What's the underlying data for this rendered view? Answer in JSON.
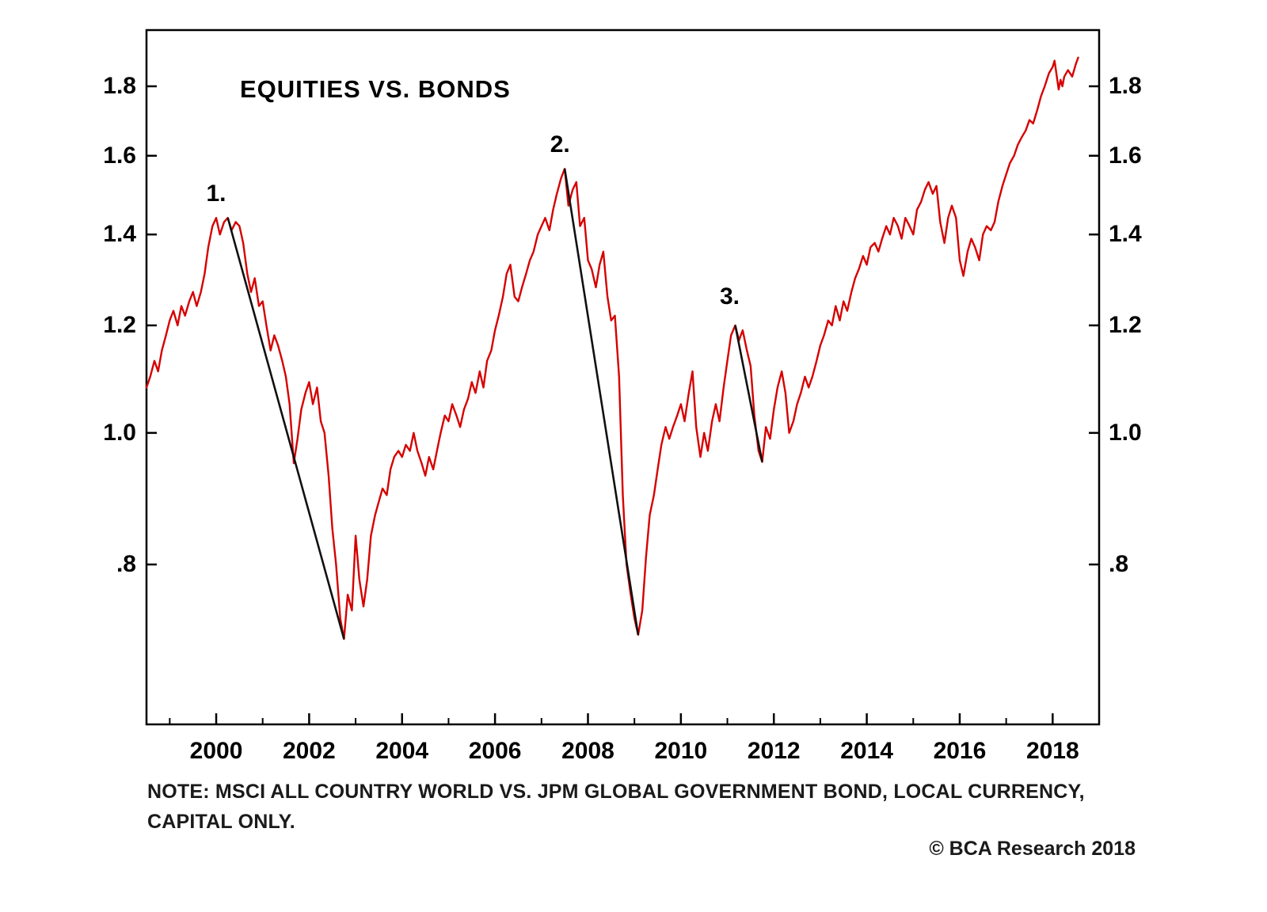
{
  "colors": {
    "line": "#d60000",
    "trend": "#111111",
    "axis": "#000000",
    "background": "#ffffff"
  },
  "chart_data": {
    "type": "line",
    "title": "EQUITIES VS. BONDS",
    "note_line1": "NOTE: MSCI ALL COUNTRY WORLD VS. JPM GLOBAL GOVERNMENT BOND, LOCAL CURRENCY,",
    "note_line2": "CAPITAL ONLY.",
    "copyright": "© BCA Research 2018",
    "x_range": [
      1998.5,
      2019.0
    ],
    "y_range": [
      0.61,
      1.98
    ],
    "y_scale": "log",
    "grid": false,
    "x_ticks": [
      {
        "value": 2000,
        "label": "2000"
      },
      {
        "value": 2002,
        "label": "2002"
      },
      {
        "value": 2004,
        "label": "2004"
      },
      {
        "value": 2006,
        "label": "2006"
      },
      {
        "value": 2008,
        "label": "2008"
      },
      {
        "value": 2010,
        "label": "2010"
      },
      {
        "value": 2012,
        "label": "2012"
      },
      {
        "value": 2014,
        "label": "2014"
      },
      {
        "value": 2016,
        "label": "2016"
      },
      {
        "value": 2018,
        "label": "2018"
      }
    ],
    "x_minor_ticks": [
      1999,
      2001,
      2003,
      2005,
      2007,
      2009,
      2011,
      2013,
      2015,
      2017
    ],
    "y_ticks": [
      {
        "value": 0.8,
        "label": ".8"
      },
      {
        "value": 1.0,
        "label": "1.0"
      },
      {
        "value": 1.2,
        "label": "1.2"
      },
      {
        "value": 1.4,
        "label": "1.4"
      },
      {
        "value": 1.6,
        "label": "1.6"
      },
      {
        "value": 1.8,
        "label": "1.8"
      }
    ],
    "series": [
      {
        "name": "EQUITIES VS. BONDS",
        "color": "#d60000",
        "points": [
          [
            1998.5,
            1.08
          ],
          [
            1998.58,
            1.1
          ],
          [
            1998.67,
            1.13
          ],
          [
            1998.75,
            1.11
          ],
          [
            1998.83,
            1.15
          ],
          [
            1998.92,
            1.18
          ],
          [
            1999.0,
            1.21
          ],
          [
            1999.08,
            1.23
          ],
          [
            1999.17,
            1.2
          ],
          [
            1999.25,
            1.24
          ],
          [
            1999.33,
            1.22
          ],
          [
            1999.42,
            1.25
          ],
          [
            1999.5,
            1.27
          ],
          [
            1999.58,
            1.24
          ],
          [
            1999.67,
            1.27
          ],
          [
            1999.75,
            1.31
          ],
          [
            1999.83,
            1.37
          ],
          [
            1999.92,
            1.42
          ],
          [
            2000.0,
            1.44
          ],
          [
            2000.08,
            1.4
          ],
          [
            2000.17,
            1.43
          ],
          [
            2000.25,
            1.44
          ],
          [
            2000.33,
            1.41
          ],
          [
            2000.42,
            1.43
          ],
          [
            2000.5,
            1.42
          ],
          [
            2000.58,
            1.38
          ],
          [
            2000.67,
            1.31
          ],
          [
            2000.75,
            1.27
          ],
          [
            2000.83,
            1.3
          ],
          [
            2000.92,
            1.24
          ],
          [
            2001.0,
            1.25
          ],
          [
            2001.08,
            1.2
          ],
          [
            2001.17,
            1.15
          ],
          [
            2001.25,
            1.18
          ],
          [
            2001.33,
            1.16
          ],
          [
            2001.42,
            1.13
          ],
          [
            2001.5,
            1.1
          ],
          [
            2001.58,
            1.05
          ],
          [
            2001.67,
            0.95
          ],
          [
            2001.75,
            0.99
          ],
          [
            2001.83,
            1.04
          ],
          [
            2001.92,
            1.07
          ],
          [
            2002.0,
            1.09
          ],
          [
            2002.08,
            1.05
          ],
          [
            2002.17,
            1.08
          ],
          [
            2002.25,
            1.02
          ],
          [
            2002.33,
            1.0
          ],
          [
            2002.42,
            0.93
          ],
          [
            2002.5,
            0.85
          ],
          [
            2002.58,
            0.8
          ],
          [
            2002.67,
            0.73
          ],
          [
            2002.75,
            0.705
          ],
          [
            2002.83,
            0.76
          ],
          [
            2002.92,
            0.74
          ],
          [
            2003.0,
            0.84
          ],
          [
            2003.08,
            0.78
          ],
          [
            2003.17,
            0.745
          ],
          [
            2003.25,
            0.78
          ],
          [
            2003.33,
            0.84
          ],
          [
            2003.42,
            0.87
          ],
          [
            2003.5,
            0.89
          ],
          [
            2003.58,
            0.91
          ],
          [
            2003.67,
            0.9
          ],
          [
            2003.75,
            0.94
          ],
          [
            2003.83,
            0.96
          ],
          [
            2003.92,
            0.97
          ],
          [
            2004.0,
            0.96
          ],
          [
            2004.08,
            0.98
          ],
          [
            2004.17,
            0.97
          ],
          [
            2004.25,
            1.0
          ],
          [
            2004.33,
            0.97
          ],
          [
            2004.42,
            0.95
          ],
          [
            2004.5,
            0.93
          ],
          [
            2004.58,
            0.96
          ],
          [
            2004.67,
            0.94
          ],
          [
            2004.75,
            0.97
          ],
          [
            2004.83,
            1.0
          ],
          [
            2004.92,
            1.03
          ],
          [
            2005.0,
            1.02
          ],
          [
            2005.08,
            1.05
          ],
          [
            2005.17,
            1.03
          ],
          [
            2005.25,
            1.01
          ],
          [
            2005.33,
            1.04
          ],
          [
            2005.42,
            1.06
          ],
          [
            2005.5,
            1.09
          ],
          [
            2005.58,
            1.07
          ],
          [
            2005.67,
            1.11
          ],
          [
            2005.75,
            1.08
          ],
          [
            2005.83,
            1.13
          ],
          [
            2005.92,
            1.15
          ],
          [
            2006.0,
            1.19
          ],
          [
            2006.08,
            1.22
          ],
          [
            2006.17,
            1.26
          ],
          [
            2006.25,
            1.31
          ],
          [
            2006.33,
            1.33
          ],
          [
            2006.42,
            1.26
          ],
          [
            2006.5,
            1.25
          ],
          [
            2006.58,
            1.28
          ],
          [
            2006.67,
            1.31
          ],
          [
            2006.75,
            1.34
          ],
          [
            2006.83,
            1.36
          ],
          [
            2006.92,
            1.4
          ],
          [
            2007.0,
            1.42
          ],
          [
            2007.08,
            1.44
          ],
          [
            2007.17,
            1.41
          ],
          [
            2007.25,
            1.46
          ],
          [
            2007.33,
            1.5
          ],
          [
            2007.42,
            1.54
          ],
          [
            2007.5,
            1.565
          ],
          [
            2007.58,
            1.47
          ],
          [
            2007.67,
            1.51
          ],
          [
            2007.75,
            1.53
          ],
          [
            2007.83,
            1.42
          ],
          [
            2007.92,
            1.44
          ],
          [
            2008.0,
            1.34
          ],
          [
            2008.08,
            1.32
          ],
          [
            2008.17,
            1.28
          ],
          [
            2008.25,
            1.33
          ],
          [
            2008.33,
            1.36
          ],
          [
            2008.42,
            1.26
          ],
          [
            2008.5,
            1.21
          ],
          [
            2008.58,
            1.22
          ],
          [
            2008.67,
            1.1
          ],
          [
            2008.75,
            0.9
          ],
          [
            2008.83,
            0.8
          ],
          [
            2008.92,
            0.76
          ],
          [
            2009.0,
            0.73
          ],
          [
            2009.08,
            0.71
          ],
          [
            2009.17,
            0.74
          ],
          [
            2009.25,
            0.81
          ],
          [
            2009.33,
            0.87
          ],
          [
            2009.42,
            0.9
          ],
          [
            2009.5,
            0.94
          ],
          [
            2009.58,
            0.98
          ],
          [
            2009.67,
            1.01
          ],
          [
            2009.75,
            0.99
          ],
          [
            2009.83,
            1.01
          ],
          [
            2009.92,
            1.03
          ],
          [
            2010.0,
            1.05
          ],
          [
            2010.08,
            1.02
          ],
          [
            2010.17,
            1.07
          ],
          [
            2010.25,
            1.11
          ],
          [
            2010.33,
            1.01
          ],
          [
            2010.42,
            0.96
          ],
          [
            2010.5,
            1.0
          ],
          [
            2010.58,
            0.97
          ],
          [
            2010.67,
            1.02
          ],
          [
            2010.75,
            1.05
          ],
          [
            2010.83,
            1.02
          ],
          [
            2010.92,
            1.08
          ],
          [
            2011.0,
            1.13
          ],
          [
            2011.08,
            1.18
          ],
          [
            2011.17,
            1.2
          ],
          [
            2011.25,
            1.17
          ],
          [
            2011.33,
            1.19
          ],
          [
            2011.42,
            1.15
          ],
          [
            2011.5,
            1.12
          ],
          [
            2011.58,
            1.03
          ],
          [
            2011.67,
            0.97
          ],
          [
            2011.75,
            0.952
          ],
          [
            2011.83,
            1.01
          ],
          [
            2011.92,
            0.99
          ],
          [
            2012.0,
            1.04
          ],
          [
            2012.08,
            1.08
          ],
          [
            2012.17,
            1.11
          ],
          [
            2012.25,
            1.07
          ],
          [
            2012.33,
            1.0
          ],
          [
            2012.42,
            1.02
          ],
          [
            2012.5,
            1.05
          ],
          [
            2012.58,
            1.07
          ],
          [
            2012.67,
            1.1
          ],
          [
            2012.75,
            1.08
          ],
          [
            2012.83,
            1.1
          ],
          [
            2012.92,
            1.13
          ],
          [
            2013.0,
            1.16
          ],
          [
            2013.08,
            1.18
          ],
          [
            2013.17,
            1.21
          ],
          [
            2013.25,
            1.2
          ],
          [
            2013.33,
            1.24
          ],
          [
            2013.42,
            1.21
          ],
          [
            2013.5,
            1.25
          ],
          [
            2013.58,
            1.23
          ],
          [
            2013.67,
            1.27
          ],
          [
            2013.75,
            1.3
          ],
          [
            2013.83,
            1.32
          ],
          [
            2013.92,
            1.35
          ],
          [
            2014.0,
            1.33
          ],
          [
            2014.08,
            1.37
          ],
          [
            2014.17,
            1.38
          ],
          [
            2014.25,
            1.36
          ],
          [
            2014.33,
            1.39
          ],
          [
            2014.42,
            1.42
          ],
          [
            2014.5,
            1.4
          ],
          [
            2014.58,
            1.44
          ],
          [
            2014.67,
            1.42
          ],
          [
            2014.75,
            1.39
          ],
          [
            2014.83,
            1.44
          ],
          [
            2014.92,
            1.42
          ],
          [
            2015.0,
            1.4
          ],
          [
            2015.08,
            1.46
          ],
          [
            2015.17,
            1.48
          ],
          [
            2015.25,
            1.51
          ],
          [
            2015.33,
            1.53
          ],
          [
            2015.42,
            1.5
          ],
          [
            2015.5,
            1.52
          ],
          [
            2015.58,
            1.43
          ],
          [
            2015.67,
            1.38
          ],
          [
            2015.75,
            1.44
          ],
          [
            2015.83,
            1.47
          ],
          [
            2015.92,
            1.44
          ],
          [
            2016.0,
            1.34
          ],
          [
            2016.08,
            1.305
          ],
          [
            2016.17,
            1.36
          ],
          [
            2016.25,
            1.39
          ],
          [
            2016.33,
            1.37
          ],
          [
            2016.42,
            1.34
          ],
          [
            2016.5,
            1.4
          ],
          [
            2016.58,
            1.42
          ],
          [
            2016.67,
            1.41
          ],
          [
            2016.75,
            1.43
          ],
          [
            2016.83,
            1.48
          ],
          [
            2016.92,
            1.52
          ],
          [
            2017.0,
            1.55
          ],
          [
            2017.08,
            1.58
          ],
          [
            2017.17,
            1.6
          ],
          [
            2017.25,
            1.63
          ],
          [
            2017.33,
            1.65
          ],
          [
            2017.42,
            1.67
          ],
          [
            2017.5,
            1.7
          ],
          [
            2017.58,
            1.69
          ],
          [
            2017.67,
            1.73
          ],
          [
            2017.75,
            1.77
          ],
          [
            2017.83,
            1.8
          ],
          [
            2017.92,
            1.84
          ],
          [
            2018.0,
            1.86
          ],
          [
            2018.04,
            1.88
          ],
          [
            2018.08,
            1.84
          ],
          [
            2018.13,
            1.79
          ],
          [
            2018.17,
            1.82
          ],
          [
            2018.21,
            1.8
          ],
          [
            2018.25,
            1.83
          ],
          [
            2018.33,
            1.85
          ],
          [
            2018.42,
            1.83
          ],
          [
            2018.5,
            1.87
          ],
          [
            2018.55,
            1.89
          ]
        ]
      }
    ],
    "trend_lines": [
      {
        "label": "1.",
        "points": [
          [
            2000.25,
            1.44
          ],
          [
            2002.75,
            0.705
          ]
        ]
      },
      {
        "label": "2.",
        "points": [
          [
            2007.5,
            1.565
          ],
          [
            2009.08,
            0.71
          ]
        ]
      },
      {
        "label": "3.",
        "points": [
          [
            2011.17,
            1.2
          ],
          [
            2011.75,
            0.952
          ]
        ]
      }
    ],
    "annotations": [
      {
        "text": "1.",
        "x": 2000.0,
        "y": 1.5
      },
      {
        "text": "2.",
        "x": 2007.4,
        "y": 1.63
      },
      {
        "text": "3.",
        "x": 2011.05,
        "y": 1.26
      }
    ]
  }
}
